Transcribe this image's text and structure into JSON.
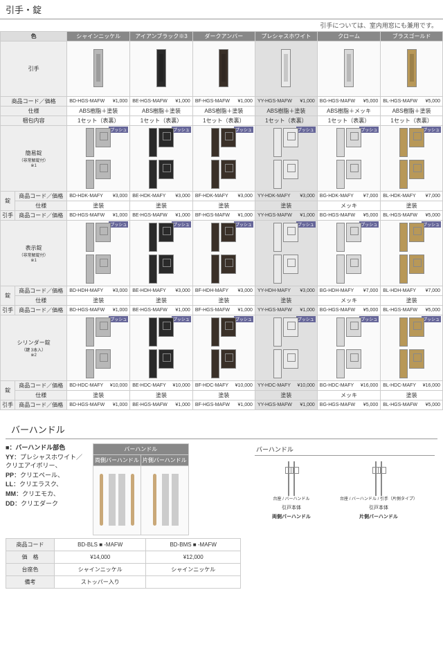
{
  "section1": {
    "title": "引手・錠",
    "subtitle": "引手については、室内用窓にも兼用です。",
    "colorLabel": "色",
    "columns": [
      "シャインニッケル",
      "アイアンブラック※3",
      "ダークアンバー",
      "プレシャスホワイト",
      "クローム",
      "ブラスゴールド"
    ],
    "colColors": [
      "#b8b8b8",
      "#2a2a2a",
      "#3a3028",
      "#eaeaea",
      "#d8d8d8",
      "#b89858"
    ],
    "highlightCol": 3,
    "rows": [
      {
        "label": "引手",
        "sublabel": "",
        "type": "pull",
        "lines": [
          {
            "label": "商品コード／価格",
            "vals": [
              [
                "BD-HGS-MAFW",
                "¥1,000"
              ],
              [
                "BE-HGS-MAFW",
                "¥1,000"
              ],
              [
                "BF-HGS-MAFW",
                "¥1,000"
              ],
              [
                "YY-HGS-MAFW",
                "¥1,000"
              ],
              [
                "BG-HGS-MAFW",
                "¥5,000"
              ],
              [
                "BL-HGS-MAFW",
                "¥5,000"
              ]
            ]
          },
          {
            "label": "仕様",
            "vals": [
              "ABS樹脂＋塗装",
              "ABS樹脂＋塗装",
              "ABS樹脂＋塗装",
              "ABS樹脂＋塗装",
              "ABS樹脂＋メッキ",
              "ABS樹脂＋塗装"
            ]
          },
          {
            "label": "梱包内容",
            "vals": [
              "1セット（表裏）",
              "1セット（表裏）",
              "1セット（表裏）",
              "1セット（表裏）",
              "1セット（表裏）",
              "1セット（表裏）"
            ]
          }
        ]
      },
      {
        "label": "簡易錠",
        "sublabel": "（非常解錠付）\n※1",
        "type": "lock",
        "push": "プッシュ",
        "lock": {
          "left": "錠",
          "lines": [
            {
              "label": "商品コード／価格",
              "vals": [
                [
                  "BD-HDK-MAFY",
                  "¥3,000"
                ],
                [
                  "BE-HDK-MAFY",
                  "¥3,000"
                ],
                [
                  "BF-HDK-MAFY",
                  "¥3,000"
                ],
                [
                  "YY-HDK-MAFY",
                  "¥3,000"
                ],
                [
                  "BG-HDK-MAFY",
                  "¥7,000"
                ],
                [
                  "BL-HDK-MAFY",
                  "¥7,000"
                ]
              ]
            },
            {
              "label": "仕様",
              "vals": [
                "塗装",
                "塗装",
                "塗装",
                "塗装",
                "メッキ",
                "塗装"
              ]
            }
          ]
        },
        "hikite": {
          "left": "引手",
          "label": "商品コード／価格",
          "vals": [
            [
              "BD-HGS-MAFW",
              "¥1,000"
            ],
            [
              "BE-HGS-MAFW",
              "¥1,000"
            ],
            [
              "BF-HGS-MAFW",
              "¥1,000"
            ],
            [
              "YY-HGS-MAFW",
              "¥1,000"
            ],
            [
              "BG-HGS-MAFW",
              "¥5,000"
            ],
            [
              "BL-HGS-MAFW",
              "¥5,000"
            ]
          ]
        }
      },
      {
        "label": "表示錠",
        "sublabel": "（非常解錠付）\n※1",
        "type": "lock",
        "push": "プッシュ",
        "lock": {
          "left": "錠",
          "lines": [
            {
              "label": "商品コード／価格",
              "vals": [
                [
                  "BD-HDH-MAFY",
                  "¥3,000"
                ],
                [
                  "BE-HDH-MAFY",
                  "¥3,000"
                ],
                [
                  "BF-HDH-MAFY",
                  "¥3,000"
                ],
                [
                  "YY-HDH-MAFY",
                  "¥3,000"
                ],
                [
                  "BG-HDH-MAFY",
                  "¥7,000"
                ],
                [
                  "BL-HDH-MAFY",
                  "¥7,000"
                ]
              ]
            },
            {
              "label": "仕様",
              "vals": [
                "塗装",
                "塗装",
                "塗装",
                "塗装",
                "メッキ",
                "塗装"
              ]
            }
          ]
        },
        "hikite": {
          "left": "引手",
          "label": "商品コード／価格",
          "vals": [
            [
              "BD-HGS-MAFW",
              "¥1,000"
            ],
            [
              "BE-HGS-MAFW",
              "¥1,000"
            ],
            [
              "BF-HGS-MAFW",
              "¥1,000"
            ],
            [
              "YY-HGS-MAFW",
              "¥1,000"
            ],
            [
              "BG-HGS-MAFW",
              "¥5,000"
            ],
            [
              "BL-HGS-MAFW",
              "¥5,000"
            ]
          ]
        }
      },
      {
        "label": "シリンダー錠",
        "sublabel": "（鍵 3本入）\n※2",
        "type": "lock",
        "push": "プッシュ",
        "lock": {
          "left": "錠",
          "lines": [
            {
              "label": "商品コード／価格",
              "vals": [
                [
                  "BD-HDC-MAFY",
                  "¥10,000"
                ],
                [
                  "BE-HDC-MAFY",
                  "¥10,000"
                ],
                [
                  "BF-HDC-MAFY",
                  "¥10,000"
                ],
                [
                  "YY-HDC-MAFY",
                  "¥10,000"
                ],
                [
                  "BG-HDC-MAFY",
                  "¥16,000"
                ],
                [
                  "BL-HDC-MAFY",
                  "¥16,000"
                ]
              ]
            },
            {
              "label": "仕様",
              "vals": [
                "塗装",
                "塗装",
                "塗装",
                "塗装",
                "メッキ",
                "塗装"
              ]
            }
          ]
        },
        "hikite": {
          "left": "引手",
          "label": "商品コード／価格",
          "vals": [
            [
              "BD-HGS-MAFW",
              "¥1,000"
            ],
            [
              "BE-HGS-MAFW",
              "¥1,000"
            ],
            [
              "BF-HGS-MAFW",
              "¥1,000"
            ],
            [
              "YY-HGS-MAFW",
              "¥1,000"
            ],
            [
              "BG-HGS-MAFW",
              "¥5,000"
            ],
            [
              "BL-HGS-MAFW",
              "¥5,000"
            ]
          ]
        }
      }
    ]
  },
  "section2": {
    "title": "バーハンドル",
    "legendTitle": "■：バーハンドル部色",
    "legend": [
      {
        "code": "YY",
        "text": "：プレシャスホワイト／クリエアイボリー、"
      },
      {
        "code": "PP",
        "text": "：クリエペール、"
      },
      {
        "code": "LL",
        "text": "：クリエラスク、"
      },
      {
        "code": "MM",
        "text": "：クリエモカ、"
      },
      {
        "code": "DD",
        "text": "：クリエダーク"
      }
    ],
    "barHeader": "バーハンドル",
    "barCols": [
      "両側バーハンドル",
      "片側バーハンドル"
    ],
    "spec": {
      "rows": [
        {
          "label": "商品コード",
          "vals": [
            "BD-BLS ■ -MAFW",
            "BD-BMS ■ -MAFW"
          ]
        },
        {
          "label": "価　格",
          "vals": [
            "¥14,000",
            "¥12,000"
          ]
        },
        {
          "label": "台座色",
          "vals": [
            "シャインニッケル",
            "シャインニッケル"
          ]
        },
        {
          "label": "備考",
          "vals": [
            "ストッパー入り",
            ""
          ]
        }
      ]
    },
    "diagram": {
      "title": "バーハンドル",
      "items": [
        {
          "name": "両側バーハンドル",
          "labels": [
            "台座",
            "バーハンドル",
            "引戸本体"
          ]
        },
        {
          "name": "片側バーハンドル",
          "labels": [
            "台座",
            "バーハンドル",
            "引手（片側タイプ）",
            "引戸本体"
          ]
        }
      ]
    }
  }
}
